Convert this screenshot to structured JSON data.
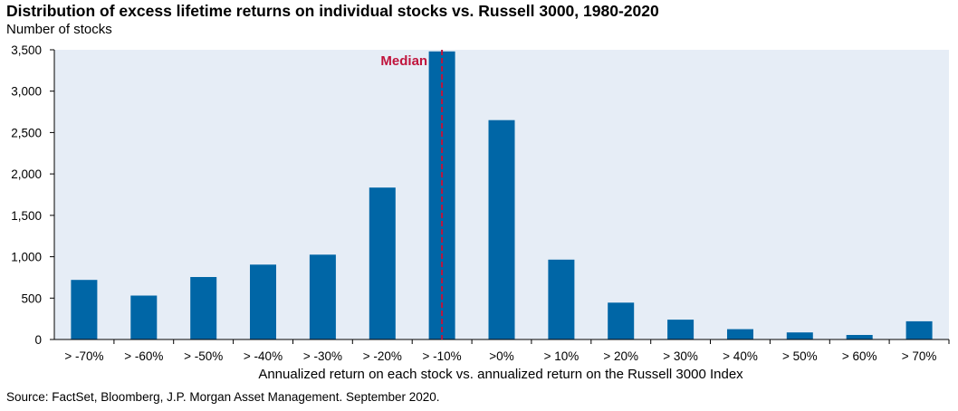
{
  "chart_data": {
    "type": "bar",
    "title": "Distribution of excess lifetime returns on individual stocks vs. Russell 3000, 1980-2020",
    "ylabel": "Number of stocks",
    "xlabel": "Annualized return on each stock vs. annualized return on the Russell 3000 Index",
    "categories": [
      "> -70%",
      "> -60%",
      "> -50%",
      "> -40%",
      "> -30%",
      "> -20%",
      "> -10%",
      ">0%",
      "> 10%",
      "> 20%",
      "> 30%",
      "> 40%",
      "> 50%",
      "> 60%",
      "> 70%"
    ],
    "values": [
      720,
      530,
      755,
      905,
      1025,
      1835,
      3480,
      2650,
      965,
      445,
      240,
      125,
      85,
      55,
      220
    ],
    "ylim": [
      0,
      3500
    ],
    "yticks": [
      "0",
      "500",
      "1,000",
      "1,500",
      "2,000",
      "2,500",
      "3,000",
      "3,500"
    ],
    "grid": "off",
    "bar_color": "#0066a6",
    "annotation": {
      "text": "Median",
      "category": "> -10%",
      "color": "#c0143c"
    }
  },
  "source": "Source: FactSet, Bloomberg, J.P. Morgan Asset Management. September 2020."
}
